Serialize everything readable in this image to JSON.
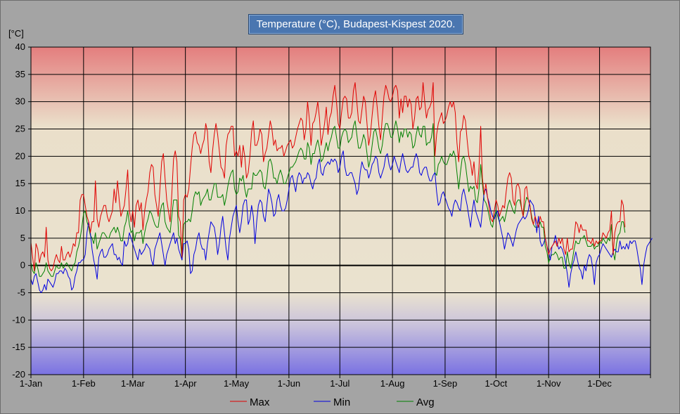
{
  "chart_data": {
    "type": "line",
    "title": "Temperature (°C), Budapest-Kispest 2020.",
    "ylabel": "[°C]",
    "xlabel": "",
    "ylim": [
      -20,
      40
    ],
    "yticks": [
      40,
      35,
      30,
      25,
      20,
      15,
      10,
      5,
      0,
      -5,
      -10,
      -15,
      -20
    ],
    "ytick_labels": [
      "40",
      "35",
      "30",
      "25",
      "20",
      "15",
      "10",
      "5",
      "0",
      "-5",
      "-10",
      "-15",
      "-20"
    ],
    "x_range_days": [
      1,
      366
    ],
    "xtick_labels": [
      "1-Jan",
      "1-Feb",
      "1-Mar",
      "1-Apr",
      "1-May",
      "1-Jun",
      "1-Jul",
      "1-Aug",
      "1-Sep",
      "1-Oct",
      "1-Nov",
      "1-Dec"
    ],
    "xtick_days": [
      1,
      32,
      61,
      92,
      122,
      153,
      183,
      214,
      245,
      275,
      306,
      336
    ],
    "grid": true,
    "legend_position": "bottom",
    "series": [
      {
        "name": "Max",
        "color": "#e00000",
        "values": [
          4.2,
          1.5,
          -1.0,
          4.0,
          3.0,
          0.5,
          2.0,
          2.5,
          1.5,
          7.0,
          1.0,
          -0.5,
          -1.0,
          -0.5,
          1.0,
          2.0,
          1.0,
          0.5,
          3.5,
          1.0,
          1.0,
          2.0,
          2.5,
          1.5,
          2.5,
          4.0,
          3.5,
          6.0,
          6.0,
          12.0,
          13.0,
          13.0,
          11.0,
          9.0,
          8.0,
          6.0,
          8.0,
          8.0,
          15.5,
          8.5,
          7.0,
          9.0,
          10.0,
          11.0,
          11.0,
          9.0,
          8.0,
          9.0,
          10.0,
          14.0,
          11.5,
          15.5,
          12.0,
          9.0,
          10.0,
          11.0,
          14.0,
          17.5,
          10.0,
          8.0,
          10.0,
          7.0,
          11.0,
          12.0,
          10.0,
          11.5,
          6.5,
          10.0,
          12.0,
          13.5,
          17.0,
          18.5,
          18.0,
          13.0,
          11.0,
          9.0,
          14.0,
          19.0,
          20.5,
          16.0,
          12.0,
          10.0,
          8.0,
          13.0,
          19.5,
          21.0,
          19.0,
          9.0,
          8.0,
          1.5,
          12.0,
          13.0,
          12.5,
          14.0,
          18.0,
          21.5,
          24.0,
          24.5,
          22.5,
          22.0,
          20.5,
          22.0,
          23.0,
          26.0,
          24.5,
          19.0,
          17.0,
          21.0,
          24.0,
          26.0,
          24.0,
          21.0,
          18.0,
          17.5,
          16.0,
          22.0,
          24.0,
          24.5,
          25.5,
          25.5,
          20.0,
          21.0,
          20.0,
          22.0,
          18.0,
          22.0,
          20.0,
          16.0,
          17.0,
          20.0,
          24.5,
          26.5,
          22.0,
          22.0,
          23.0,
          25.0,
          24.0,
          19.0,
          20.5,
          21.5,
          24.0,
          26.5,
          25.0,
          22.0,
          23.0,
          21.0,
          21.5,
          21.5,
          22.0,
          20.0,
          21.0,
          22.0,
          22.5,
          23.0,
          21.5,
          22.0,
          23.5,
          25.0,
          26.0,
          27.0,
          26.5,
          23.0,
          25.0,
          30.0,
          27.0,
          22.0,
          26.0,
          26.5,
          28.0,
          30.0,
          27.0,
          22.0,
          24.0,
          26.0,
          29.0,
          24.0,
          27.0,
          28.0,
          31.0,
          33.0,
          30.0,
          26.0,
          25.0,
          28.0,
          30.5,
          31.0,
          30.5,
          27.0,
          27.0,
          28.0,
          32.0,
          33.5,
          30.0,
          26.5,
          26.0,
          28.5,
          31.0,
          30.0,
          26.0,
          22.0,
          24.0,
          27.5,
          30.5,
          32.0,
          29.0,
          25.5,
          23.0,
          27.0,
          31.0,
          33.0,
          32.0,
          30.5,
          30.0,
          31.0,
          32.5,
          33.0,
          32.0,
          27.0,
          30.5,
          28.0,
          31.0,
          31.0,
          29.0,
          30.5,
          29.5,
          25.0,
          27.0,
          30.5,
          31.0,
          28.5,
          29.0,
          33.5,
          30.0,
          27.0,
          28.5,
          29.0,
          30.0,
          33.5,
          20.0,
          24.0,
          26.0,
          27.0,
          28.0,
          26.0,
          26.5,
          27.5,
          29.0,
          30.0,
          29.0,
          30.0,
          28.0,
          22.5,
          19.0,
          24.5,
          25.0,
          27.5,
          26.5,
          23.0,
          20.0,
          19.0,
          16.5,
          19.0,
          15.0,
          14.0,
          18.0,
          25.5,
          16.0,
          13.0,
          15.0,
          12.5,
          10.5,
          8.5,
          8.0,
          10.0,
          12.0,
          11.0,
          9.0,
          10.0,
          11.0,
          10.5,
          13.5,
          16.0,
          17.0,
          16.0,
          12.0,
          11.0,
          14.5,
          15.0,
          14.0,
          10.5,
          9.0,
          14.0,
          14.5,
          12.0,
          11.0,
          8.5,
          7.5,
          9.0,
          8.0,
          7.0,
          9.0,
          8.0,
          8.0,
          5.0,
          3.5,
          2.0,
          3.0,
          3.5,
          4.0,
          4.5,
          3.5,
          5.0,
          4.0,
          5.0,
          3.0,
          2.0,
          5.0,
          2.5,
          3.0,
          3.0,
          5.0,
          8.0,
          7.5,
          6.0,
          7.5,
          6.5,
          6.5,
          6.5,
          4.5,
          4.5,
          4.0,
          5.0,
          3.5,
          4.5,
          4.0,
          4.5,
          4.5,
          6.0,
          5.5,
          5.0,
          6.0,
          6.5,
          10.0,
          2.0,
          6.0,
          7.5,
          8.0,
          8.0,
          12.0,
          11.0,
          7.0
        ]
      },
      {
        "name": "Min",
        "color": "#0000e0",
        "values": [
          -2.5,
          -3.5,
          -2.0,
          -1.5,
          -3.0,
          -4.5,
          -5.0,
          -4.5,
          -3.5,
          -4.5,
          -2.5,
          -3.0,
          -3.5,
          -4.0,
          -3.0,
          -1.5,
          -1.5,
          -1.0,
          -1.0,
          -1.5,
          -0.5,
          -1.0,
          -2.0,
          -2.5,
          -4.5,
          -4.0,
          -2.0,
          -1.0,
          0.5,
          0.5,
          1.0,
          1.0,
          2.0,
          6.0,
          8.0,
          6.0,
          3.0,
          1.0,
          -0.5,
          -2.5,
          1.5,
          2.5,
          3.0,
          1.5,
          1.5,
          2.0,
          3.0,
          3.5,
          4.0,
          2.0,
          2.0,
          1.0,
          1.5,
          0.5,
          0.0,
          4.5,
          3.5,
          4.0,
          6.0,
          5.0,
          4.0,
          3.0,
          2.0,
          1.0,
          3.0,
          2.0,
          2.5,
          3.0,
          4.0,
          3.5,
          3.0,
          1.0,
          0.0,
          3.0,
          4.0,
          5.0,
          6.0,
          4.0,
          2.0,
          0.0,
          2.0,
          3.0,
          4.0,
          5.0,
          6.0,
          4.0,
          5.0,
          3.0,
          2.0,
          1.0,
          4.0,
          4.0,
          4.5,
          3.0,
          -1.5,
          -1.0,
          2.0,
          3.0,
          5.0,
          6.0,
          4.0,
          3.0,
          3.0,
          1.0,
          4.0,
          6.0,
          8.0,
          7.5,
          7.0,
          5.0,
          2.0,
          4.0,
          7.0,
          9.0,
          6.0,
          3.0,
          1.0,
          5.0,
          7.0,
          9.0,
          10.0,
          11.0,
          8.0,
          6.0,
          8.0,
          11.0,
          12.0,
          12.0,
          7.5,
          8.5,
          11.0,
          9.0,
          4.0,
          8.0,
          11.0,
          12.0,
          11.5,
          9.0,
          8.0,
          11.0,
          14.0,
          13.0,
          11.5,
          9.0,
          9.5,
          12.0,
          13.0,
          11.0,
          10.0,
          10.0,
          10.5,
          12.0,
          14.0,
          16.0,
          16.5,
          15.0,
          13.5,
          16.0,
          17.0,
          16.5,
          15.0,
          16.0,
          16.0,
          17.0,
          16.5,
          15.0,
          14.0,
          15.5,
          16.0,
          18.5,
          19.5,
          17.0,
          16.5,
          18.0,
          18.5,
          19.0,
          18.5,
          19.5,
          19.0,
          19.5,
          19.0,
          17.0,
          18.0,
          20.0,
          21.0,
          18.0,
          16.5,
          16.5,
          17.0,
          17.0,
          16.0,
          15.0,
          13.0,
          14.0,
          17.0,
          19.0,
          18.0,
          17.5,
          17.5,
          16.0,
          17.0,
          18.5,
          19.0,
          20.0,
          19.5,
          17.0,
          16.0,
          17.0,
          18.0,
          20.0,
          20.5,
          18.5,
          17.5,
          18.5,
          20.0,
          19.0,
          18.0,
          17.0,
          19.0,
          20.5,
          19.0,
          17.5,
          17.0,
          17.5,
          18.0,
          18.0,
          19.5,
          20.5,
          19.5,
          17.0,
          16.5,
          17.5,
          18.0,
          18.0,
          16.5,
          15.5,
          15.5,
          16.5,
          17.0,
          13.5,
          11.0,
          11.5,
          13.0,
          13.5,
          12.5,
          11.5,
          10.5,
          10.0,
          9.0,
          11.0,
          12.0,
          11.5,
          10.5,
          10.0,
          13.0,
          14.0,
          12.5,
          11.0,
          9.0,
          7.0,
          10.0,
          12.0,
          10.0,
          9.0,
          8.0,
          7.0,
          10.0,
          13.5,
          14.0,
          12.5,
          11.5,
          10.0,
          9.0,
          8.5,
          9.5,
          10.0,
          8.0,
          6.5,
          5.0,
          3.0,
          4.5,
          6.0,
          5.5,
          4.5,
          3.5,
          5.0,
          6.5,
          7.5,
          8.0,
          8.5,
          9.0,
          8.5,
          9.0,
          10.0,
          12.0,
          11.5,
          11.0,
          9.0,
          6.0,
          9.0,
          4.5,
          3.5,
          4.0,
          5.0,
          3.5,
          2.5,
          1.0,
          3.5,
          4.0,
          5.5,
          4.0,
          3.0,
          3.5,
          3.0,
          2.0,
          0.5,
          -1.5,
          -4.0,
          -1.5,
          0.0,
          1.0,
          2.5,
          1.0,
          -0.5,
          -1.0,
          -2.5,
          0.0,
          -1.0,
          1.0,
          2.0,
          1.5,
          -0.5,
          -3.5,
          0.5,
          1.5,
          2.0,
          3.0,
          4.0,
          3.5,
          3.0,
          2.5,
          2.0,
          1.5,
          2.5,
          3.0,
          2.5,
          2.5,
          4.5,
          3.0,
          3.5,
          3.0,
          4.0,
          3.0,
          4.5,
          4.0,
          4.5,
          4.5,
          3.0,
          1.0,
          -0.5,
          -3.5,
          0.0,
          2.0,
          3.5,
          4.0,
          4.5,
          5.0
        ]
      },
      {
        "name": "Avg",
        "color": "#008000",
        "values": [
          0.5,
          -1.0,
          -1.5,
          0.5,
          -0.5,
          -2.0,
          -2.0,
          -1.5,
          -1.0,
          0.5,
          -1.0,
          -1.5,
          -2.0,
          -2.0,
          -1.0,
          0.0,
          -0.5,
          -0.5,
          0.5,
          -0.5,
          0.0,
          0.5,
          0.0,
          -0.5,
          -1.0,
          0.0,
          0.5,
          2.5,
          3.5,
          5.0,
          7.0,
          9.5,
          10.0,
          8.0,
          7.0,
          5.5,
          5.0,
          4.0,
          6.0,
          3.0,
          4.0,
          5.0,
          6.0,
          6.0,
          5.5,
          5.0,
          5.0,
          6.0,
          6.5,
          7.0,
          6.0,
          7.0,
          6.0,
          4.5,
          4.5,
          7.0,
          8.0,
          10.0,
          7.5,
          6.0,
          6.5,
          4.5,
          6.0,
          6.0,
          6.0,
          6.5,
          4.0,
          6.0,
          7.5,
          8.5,
          10.0,
          9.5,
          8.5,
          7.5,
          7.0,
          7.0,
          9.5,
          11.0,
          11.5,
          8.0,
          7.0,
          6.5,
          6.0,
          9.0,
          12.0,
          12.0,
          12.0,
          5.5,
          5.0,
          1.0,
          7.5,
          8.0,
          8.0,
          8.5,
          8.0,
          10.0,
          12.5,
          13.5,
          13.0,
          13.5,
          11.0,
          12.0,
          12.5,
          13.0,
          14.0,
          12.0,
          12.0,
          13.5,
          15.0,
          15.0,
          12.5,
          12.5,
          12.5,
          13.0,
          11.0,
          12.5,
          14.5,
          16.0,
          17.0,
          17.5,
          14.0,
          13.0,
          13.5,
          16.0,
          15.5,
          16.5,
          14.0,
          12.5,
          14.0,
          14.0,
          14.0,
          17.0,
          16.5,
          16.5,
          17.0,
          17.5,
          17.0,
          14.5,
          14.0,
          16.0,
          19.0,
          19.5,
          18.5,
          16.0,
          16.0,
          15.0,
          16.5,
          17.5,
          16.5,
          15.0,
          15.0,
          16.0,
          17.0,
          18.0,
          18.0,
          18.5,
          19.0,
          20.0,
          21.0,
          21.5,
          21.0,
          19.5,
          19.5,
          22.5,
          21.5,
          18.5,
          20.5,
          20.5,
          22.0,
          23.0,
          21.5,
          19.0,
          19.5,
          21.0,
          22.5,
          21.0,
          22.5,
          23.5,
          25.0,
          25.5,
          23.5,
          21.5,
          21.5,
          23.5,
          24.5,
          25.0,
          24.5,
          22.5,
          23.0,
          23.5,
          25.5,
          26.5,
          24.0,
          21.5,
          21.5,
          22.5,
          24.0,
          23.0,
          20.5,
          18.0,
          19.5,
          22.0,
          24.5,
          25.0,
          23.5,
          21.5,
          20.5,
          22.0,
          24.5,
          26.0,
          26.0,
          25.0,
          23.5,
          23.5,
          25.0,
          26.5,
          25.0,
          22.5,
          24.5,
          23.5,
          25.0,
          25.0,
          23.5,
          24.5,
          24.0,
          21.5,
          22.0,
          24.0,
          25.5,
          24.0,
          23.5,
          25.5,
          25.5,
          22.0,
          22.5,
          22.5,
          23.5,
          26.0,
          17.0,
          16.5,
          18.5,
          19.0,
          20.0,
          19.0,
          18.5,
          18.5,
          19.5,
          20.5,
          20.0,
          21.0,
          20.0,
          17.0,
          14.0,
          17.0,
          19.5,
          20.0,
          18.5,
          16.0,
          13.5,
          14.5,
          14.0,
          14.5,
          12.0,
          11.5,
          14.0,
          18.5,
          15.0,
          12.0,
          11.5,
          10.5,
          9.0,
          7.5,
          7.0,
          9.0,
          10.0,
          9.0,
          8.0,
          8.5,
          9.0,
          8.0,
          9.5,
          11.0,
          12.0,
          11.0,
          10.0,
          9.5,
          11.5,
          12.0,
          12.0,
          10.5,
          9.0,
          11.0,
          12.5,
          12.0,
          11.0,
          9.0,
          7.5,
          7.0,
          7.0,
          7.0,
          8.0,
          7.0,
          7.0,
          3.5,
          2.5,
          0.5,
          1.5,
          2.0,
          2.0,
          2.5,
          2.0,
          1.0,
          1.5,
          1.5,
          -0.5,
          -0.5,
          2.5,
          0.5,
          -0.5,
          1.0,
          3.0,
          4.5,
          4.0,
          4.0,
          5.0,
          5.0,
          5.5,
          4.5,
          3.5,
          3.5,
          3.5,
          4.0,
          3.0,
          3.5,
          3.5,
          4.5,
          4.0,
          5.0,
          4.5,
          4.0,
          5.0,
          4.5,
          7.5,
          2.5,
          1.0,
          4.0,
          5.5,
          6.0,
          8.0,
          8.0,
          6.0
        ]
      }
    ]
  }
}
